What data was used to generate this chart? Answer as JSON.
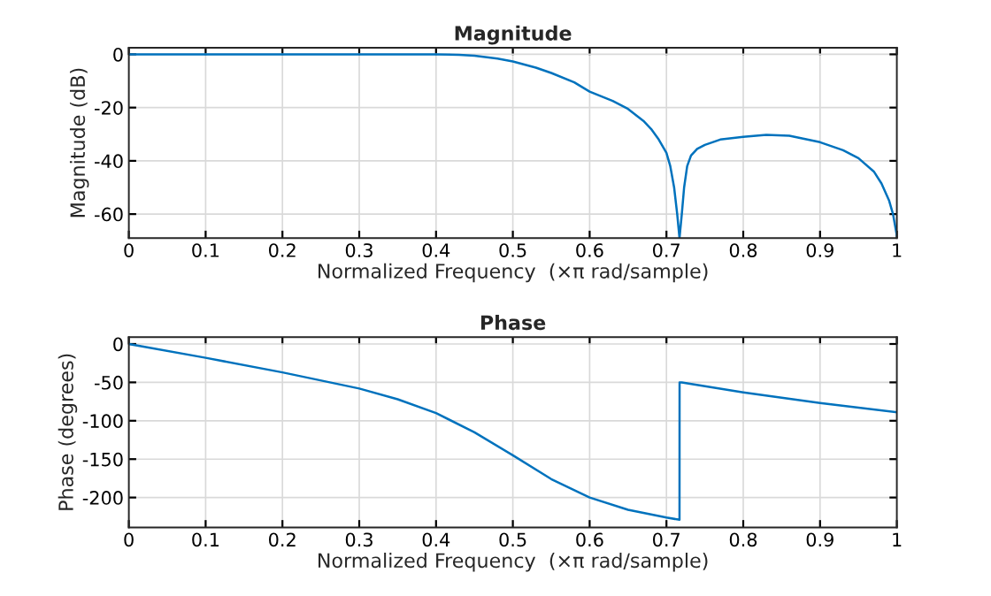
{
  "chart_data": [
    {
      "type": "line",
      "title": "Magnitude",
      "xlabel": "Normalized Frequency  (×π rad/sample)",
      "ylabel": "Magnitude (dB)",
      "xlim": [
        0,
        1
      ],
      "ylim": [
        -69,
        2.5
      ],
      "xticks": [
        0,
        0.1,
        0.2,
        0.3,
        0.4,
        0.5,
        0.6,
        0.7,
        0.8,
        0.9,
        1
      ],
      "yticks": [
        -60,
        -40,
        -20,
        0
      ],
      "grid": true,
      "line_style": "solid",
      "marker": "none",
      "series": [
        {
          "color": "#0072bd",
          "x": [
            0,
            0.1,
            0.2,
            0.3,
            0.4,
            0.43,
            0.45,
            0.48,
            0.5,
            0.53,
            0.55,
            0.58,
            0.6,
            0.63,
            0.65,
            0.67,
            0.68,
            0.69,
            0.7,
            0.705,
            0.71,
            0.714,
            0.717,
            0.72,
            0.723,
            0.727,
            0.732,
            0.74,
            0.75,
            0.77,
            0.8,
            0.83,
            0.86,
            0.9,
            0.93,
            0.95,
            0.97,
            0.98,
            0.99,
            0.995,
            1
          ],
          "values": [
            0,
            0,
            0,
            0,
            0,
            -0.2,
            -0.5,
            -1.6,
            -2.7,
            -5,
            -7,
            -10.5,
            -14,
            -17.5,
            -20.5,
            -25,
            -28,
            -32,
            -37,
            -42,
            -50,
            -60,
            -69,
            -60,
            -50,
            -42,
            -38,
            -35.5,
            -34,
            -32,
            -31,
            -30.2,
            -30.6,
            -33,
            -36,
            -39,
            -44,
            -48.5,
            -55,
            -60,
            -68
          ]
        }
      ]
    },
    {
      "type": "line",
      "title": "Phase",
      "xlabel": "Normalized Frequency  (×π rad/sample)",
      "ylabel": "Phase (degrees)",
      "xlim": [
        0,
        1
      ],
      "ylim": [
        -239,
        9
      ],
      "xticks": [
        0,
        0.1,
        0.2,
        0.3,
        0.4,
        0.5,
        0.6,
        0.7,
        0.8,
        0.9,
        1
      ],
      "yticks": [
        -200,
        -150,
        -100,
        -50,
        0
      ],
      "grid": true,
      "line_style": "solid",
      "marker": "none",
      "series": [
        {
          "color": "#0072bd",
          "x": [
            0,
            0.1,
            0.2,
            0.3,
            0.35,
            0.4,
            0.45,
            0.5,
            0.55,
            0.6,
            0.65,
            0.7,
            0.717,
            0.7171,
            0.72,
            0.8,
            0.9,
            1
          ],
          "values": [
            0,
            -18,
            -37,
            -58,
            -72,
            -90,
            -115,
            -145,
            -176,
            -200,
            -216,
            -226,
            -229,
            -50,
            -50,
            -63,
            -77,
            -89
          ]
        }
      ]
    }
  ]
}
